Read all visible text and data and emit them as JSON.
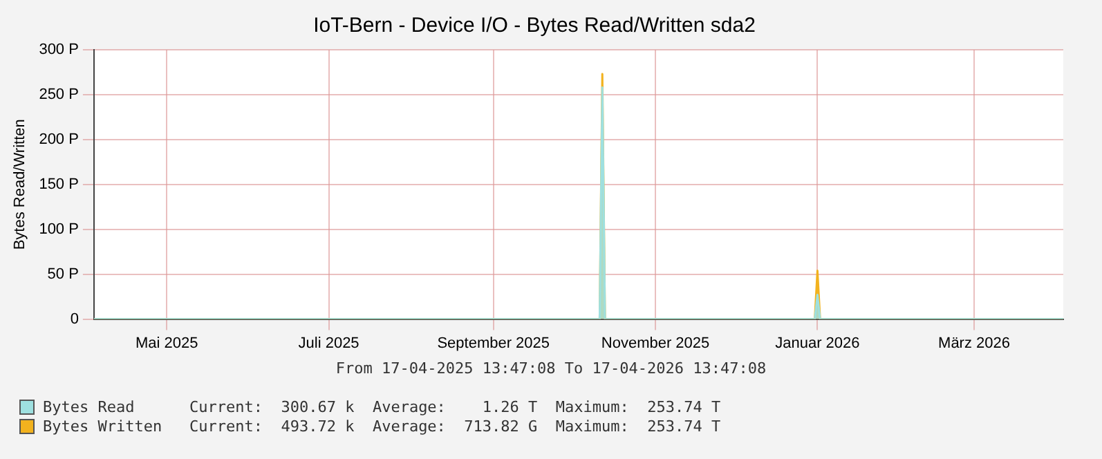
{
  "chart_data": {
    "type": "area",
    "title": "IoT-Bern - Device I/O - Bytes Read/Written sda2",
    "ylabel": "Bytes Read/Written",
    "x": [
      "2025-04-17T13:47",
      "2025-10-25",
      "2025-10-26",
      "2025-10-27",
      "2026-01-14",
      "2026-01-15",
      "2026-01-16",
      "2026-04-17T13:47"
    ],
    "series": [
      {
        "name": "Bytes Read",
        "color": "#9ee0e0",
        "values": [
          0,
          0,
          258,
          0,
          0,
          27,
          0,
          0
        ]
      },
      {
        "name": "Bytes Written",
        "color": "#f2b21e",
        "values": [
          0,
          0,
          273,
          0,
          0,
          54,
          0,
          0
        ]
      }
    ],
    "xlim": [
      "2025-04-17T13:47",
      "2026-04-17T13:47"
    ],
    "xticks": [
      {
        "value": "2025-05-15",
        "label": "Mai 2025"
      },
      {
        "value": "2025-07-15",
        "label": "Juli 2025"
      },
      {
        "value": "2025-09-15",
        "label": "September 2025"
      },
      {
        "value": "2025-11-15",
        "label": "November 2025"
      },
      {
        "value": "2026-01-15",
        "label": "Januar 2026"
      },
      {
        "value": "2026-03-15",
        "label": "März 2026"
      }
    ],
    "ylim": [
      0,
      300
    ],
    "yticks": [
      0,
      {
        "value": 50,
        "label": "50 P"
      },
      {
        "value": 100,
        "label": "100 P"
      },
      {
        "value": 150,
        "label": "150 P"
      },
      {
        "value": 200,
        "label": "200 P"
      },
      {
        "value": 250,
        "label": "250 P"
      },
      {
        "value": 300,
        "label": "300 P"
      }
    ],
    "grid": true,
    "legend": "bottom left",
    "annotations": [
      "From 17-04-2025 13:47:08 To 17-04-2026 13:47:08",
      "Current:  300.67 k  Average:    1.26 T  Maximum:  253.74 T",
      "Current:  493.72 k  Average:  713.82 G  Maximum:  253.74 T"
    ]
  }
}
